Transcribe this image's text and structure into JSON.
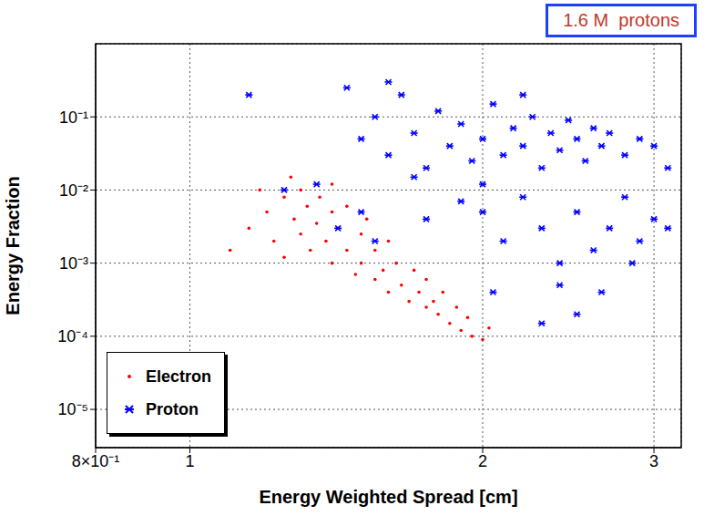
{
  "chart_data": {
    "type": "scatter",
    "xlabel": "Energy Weighted Spread [cm]",
    "ylabel": "Energy Fraction",
    "annotation": "1.6 M  protons",
    "log": true,
    "grid": true,
    "legend": "lower left",
    "xlim": [
      0.8,
      3.2
    ],
    "xticks": [
      {
        "value": 0.8,
        "label": "8×10⁻¹"
      },
      1,
      2,
      3
    ],
    "ylim": [
      3e-06,
      1
    ],
    "yticks": [
      {
        "value": 1e-05,
        "label": "10⁻⁵"
      },
      {
        "value": 0.0001,
        "label": "10⁻⁴"
      },
      {
        "value": 0.001,
        "label": "10⁻³"
      },
      {
        "value": 0.01,
        "label": "10⁻²"
      },
      {
        "value": 0.1,
        "label": "10⁻¹"
      }
    ],
    "series": [
      {
        "name": "Electron",
        "color": "#ff0000",
        "marker": "dot",
        "x": [
          1.15,
          1.2,
          1.22,
          1.25,
          1.25,
          1.28,
          1.3,
          1.3,
          1.32,
          1.33,
          1.35,
          1.36,
          1.38,
          1.4,
          1.4,
          1.42,
          1.45,
          1.45,
          1.48,
          1.5,
          1.5,
          1.52,
          1.55,
          1.55,
          1.58,
          1.6,
          1.6,
          1.63,
          1.65,
          1.68,
          1.7,
          1.72,
          1.75,
          1.75,
          1.78,
          1.8,
          1.82,
          1.85,
          1.88,
          1.9,
          1.93,
          1.95,
          2.0,
          2.03,
          1.1,
          1.18,
          1.27,
          1.4
        ],
        "values": [
          0.003,
          0.005,
          0.002,
          0.008,
          0.0012,
          0.004,
          0.01,
          0.0025,
          0.006,
          0.0015,
          0.0035,
          0.008,
          0.002,
          0.005,
          0.001,
          0.003,
          0.0015,
          0.006,
          0.0007,
          0.0025,
          0.001,
          0.004,
          0.0015,
          0.0006,
          0.0008,
          0.002,
          0.0004,
          0.001,
          0.0005,
          0.0003,
          0.0008,
          0.0004,
          0.00025,
          0.0006,
          0.0003,
          0.0002,
          0.0004,
          0.00015,
          0.00025,
          0.00012,
          0.00018,
          0.0001,
          9e-05,
          0.00013,
          0.0015,
          0.01,
          0.015,
          0.012
        ]
      },
      {
        "name": "Proton",
        "color": "#0000ff",
        "marker": "x",
        "x": [
          1.5,
          1.55,
          1.6,
          1.65,
          1.7,
          1.75,
          1.8,
          1.85,
          1.9,
          1.95,
          2.0,
          2.05,
          2.1,
          2.15,
          2.2,
          2.25,
          2.3,
          2.35,
          2.4,
          2.45,
          2.5,
          2.55,
          2.6,
          2.65,
          2.7,
          2.8,
          2.9,
          3.0,
          1.45,
          1.6,
          1.7,
          2.0,
          2.2,
          1.35,
          1.25,
          1.15,
          1.42,
          1.5,
          1.55,
          2.0,
          2.1,
          2.2,
          2.3,
          2.4,
          2.5,
          2.6,
          2.7,
          2.8,
          2.9,
          3.0,
          2.4,
          2.5,
          2.65,
          2.3,
          2.85,
          3.1,
          3.1,
          1.9,
          1.75,
          2.05
        ],
        "values": [
          0.05,
          0.1,
          0.03,
          0.2,
          0.06,
          0.02,
          0.12,
          0.04,
          0.08,
          0.025,
          0.05,
          0.15,
          0.03,
          0.07,
          0.04,
          0.1,
          0.02,
          0.06,
          0.035,
          0.09,
          0.05,
          0.025,
          0.07,
          0.04,
          0.06,
          0.03,
          0.05,
          0.04,
          0.25,
          0.3,
          0.015,
          0.012,
          0.2,
          0.012,
          0.01,
          0.2,
          0.003,
          0.005,
          0.002,
          0.005,
          0.002,
          0.008,
          0.003,
          0.001,
          0.005,
          0.0015,
          0.003,
          0.008,
          0.002,
          0.004,
          0.0005,
          0.0002,
          0.0004,
          0.00015,
          0.001,
          0.02,
          0.003,
          0.007,
          0.004,
          0.0004
        ]
      }
    ]
  }
}
